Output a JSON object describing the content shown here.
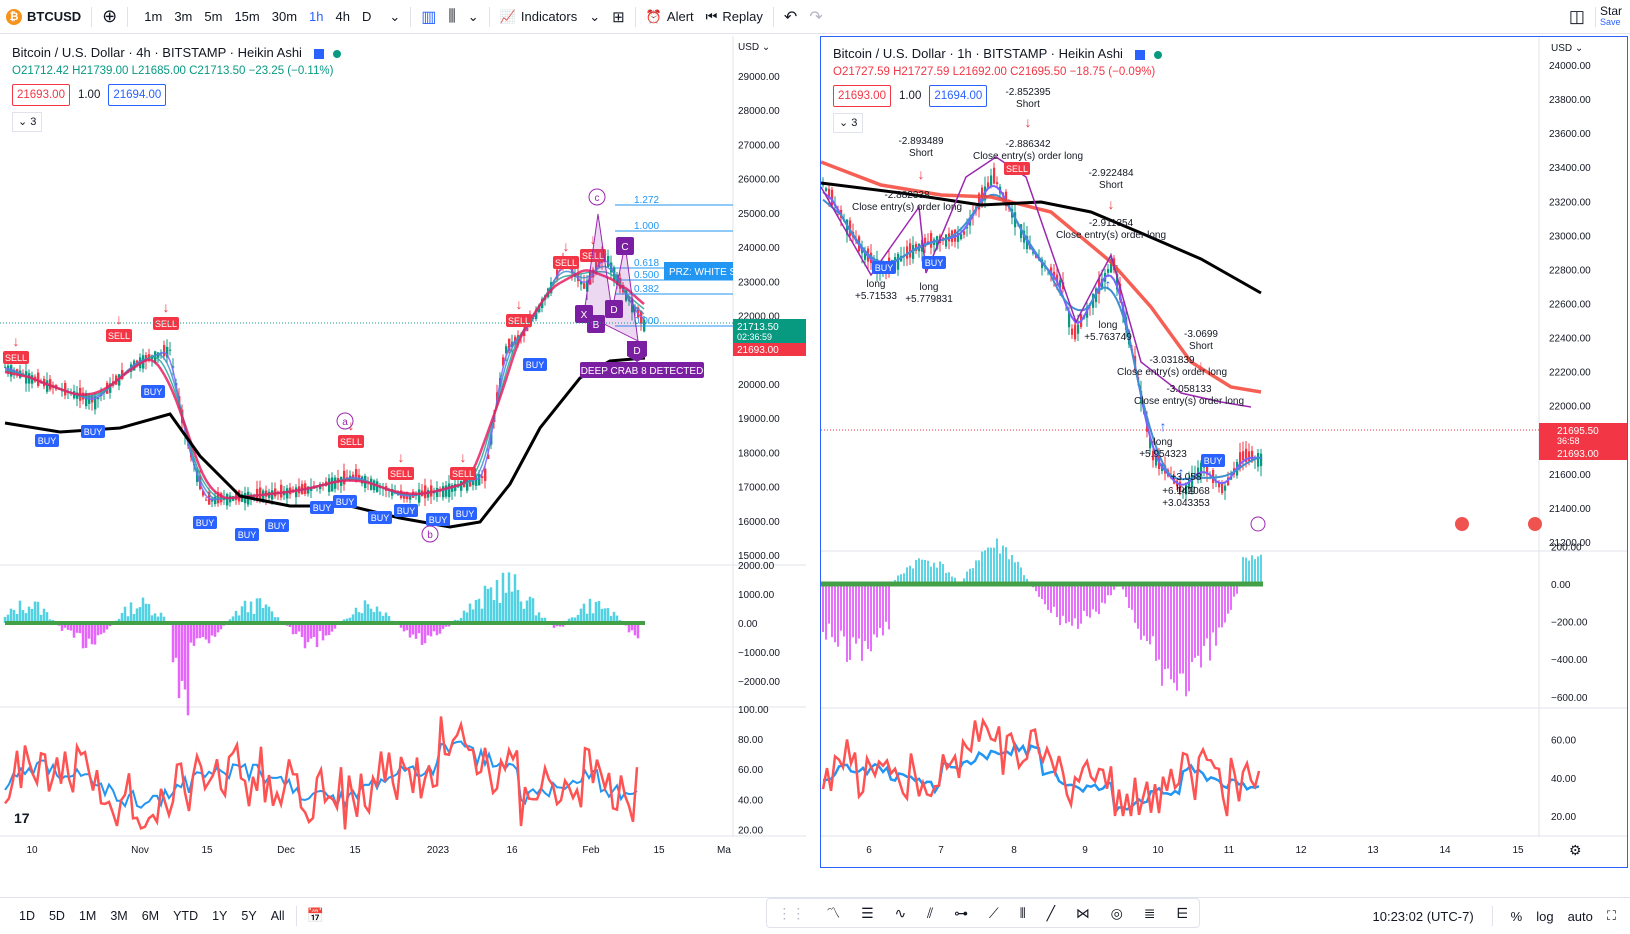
{
  "topbar": {
    "symbol": "BTCUSD",
    "symbol_icon": "bitcoin-icon",
    "timeframes": [
      "1m",
      "3m",
      "5m",
      "15m",
      "30m",
      "1h",
      "4h",
      "D"
    ],
    "active_timeframe": "1h",
    "indicators_label": "Indicators",
    "alert_label": "Alert",
    "replay_label": "Replay",
    "star_label": "Star",
    "save_label": "Save"
  },
  "left_chart": {
    "title": "Bitcoin / U.S. Dollar · 4h · BITSTAMP · Heikin Ashi",
    "ohlc": "O21712.42 H21739.00 L21685.00 C21713.50 −23.25 (−0.11%)",
    "bid": "21693.00",
    "spread": "1.00",
    "ask": "21694.00",
    "indicator_count": "3",
    "price_axis_currency": "USD",
    "price_ticks": [
      "29000.00",
      "28000.00",
      "27000.00",
      "26000.00",
      "25000.00",
      "24000.00",
      "23000.00",
      "22000.00",
      "21000.00",
      "20000.00",
      "19000.00",
      "18000.00",
      "17000.00",
      "16000.00",
      "15000.00"
    ],
    "price_last": "21713.50",
    "price_countdown": "02:36:59",
    "price_bid_label": "21693.00",
    "osc_ticks": [
      "2000.00",
      "1000.00",
      "0.00",
      "−1000.00",
      "−2000.00"
    ],
    "rsi_ticks": [
      "100.00",
      "80.00",
      "60.00",
      "40.00",
      "20.00"
    ],
    "time_ticks": [
      "10",
      "Nov",
      "15",
      "Dec",
      "15",
      "2023",
      "16",
      "Feb",
      "15",
      "Ma"
    ],
    "fib_levels": [
      "1.272",
      "1.000",
      "0.618",
      "0.500",
      "0.382",
      "0.000"
    ],
    "prz_label": "PRZ: WHITE S",
    "pattern_label": "DEEP CRAB 8 DETECTED",
    "points": [
      "a",
      "b",
      "c",
      "X",
      "B",
      "D",
      "D",
      "C"
    ],
    "signal_buy": "BUY",
    "signal_sell": "SELL"
  },
  "right_chart": {
    "title": "Bitcoin / U.S. Dollar · 1h · BITSTAMP · Heikin Ashi",
    "ohlc": "O21727.59 H21727.59 L21692.00 C21695.50 −18.75 (−0.09%)",
    "bid": "21693.00",
    "spread": "1.00",
    "ask": "21694.00",
    "indicator_count": "3",
    "price_axis_currency": "USD",
    "price_ticks": [
      "24000.00",
      "23800.00",
      "23600.00",
      "23400.00",
      "23200.00",
      "23000.00",
      "22800.00",
      "22600.00",
      "22400.00",
      "22200.00",
      "22000.00",
      "21800.00",
      "21600.00",
      "21400.00",
      "21200.00"
    ],
    "price_last": "21695.50",
    "price_countdown": "36:58",
    "price_bid_label": "21693.00",
    "osc_ticks": [
      "200.00",
      "0.00",
      "−200.00",
      "−400.00",
      "−600.00"
    ],
    "rsi_ticks": [
      "60.00",
      "40.00",
      "20.00"
    ],
    "time_ticks": [
      "6",
      "7",
      "8",
      "9",
      "10",
      "11",
      "12",
      "13",
      "14",
      "15"
    ],
    "annotations": [
      {
        "line1": "-2.852395",
        "line2": "Short"
      },
      {
        "line1": "-2.893489",
        "line2": "Short"
      },
      {
        "line1": "-2.886342",
        "line2": "Close entry(s) order long"
      },
      {
        "line1": "-2.922484",
        "line2": "Short"
      },
      {
        "line1": "-2.882338",
        "line2": "Close entry(s) order long"
      },
      {
        "line1": "-2.911354",
        "line2": "Close entry(s) order long"
      },
      {
        "line1": "long",
        "line2": "+5.71533"
      },
      {
        "line1": "long",
        "line2": "+5.779831"
      },
      {
        "line1": "long",
        "line2": "+5.763749"
      },
      {
        "line1": "-3.0699",
        "line2": "Short"
      },
      {
        "line1": "-3.031839",
        "line2": "Close entry(s) order long"
      },
      {
        "line1": "-3.058133",
        "line2": "Close entry(s) order long"
      },
      {
        "line1": "long",
        "line2": "+5.954323"
      },
      {
        "line1": "+3.058",
        "line2": "long"
      },
      {
        "line1": "+6.142068",
        "line2": "+3.043353"
      }
    ],
    "signal_buy": "BUY",
    "signal_sell": "SELL"
  },
  "bottombar": {
    "ranges": [
      "1D",
      "5D",
      "1M",
      "3M",
      "6M",
      "YTD",
      "1Y",
      "5Y",
      "All"
    ],
    "clock": "10:23:02 (UTC-7)",
    "percent_label": "%",
    "log_label": "log",
    "auto_label": "auto"
  },
  "colors": {
    "up": "#089981",
    "down": "#f23645",
    "accent": "#2962ff",
    "sell_badge": "#f23645",
    "buy_badge": "#2962ff",
    "pattern": "#9c27b0",
    "ma_black": "#000000",
    "ma_red": "#f23645"
  }
}
